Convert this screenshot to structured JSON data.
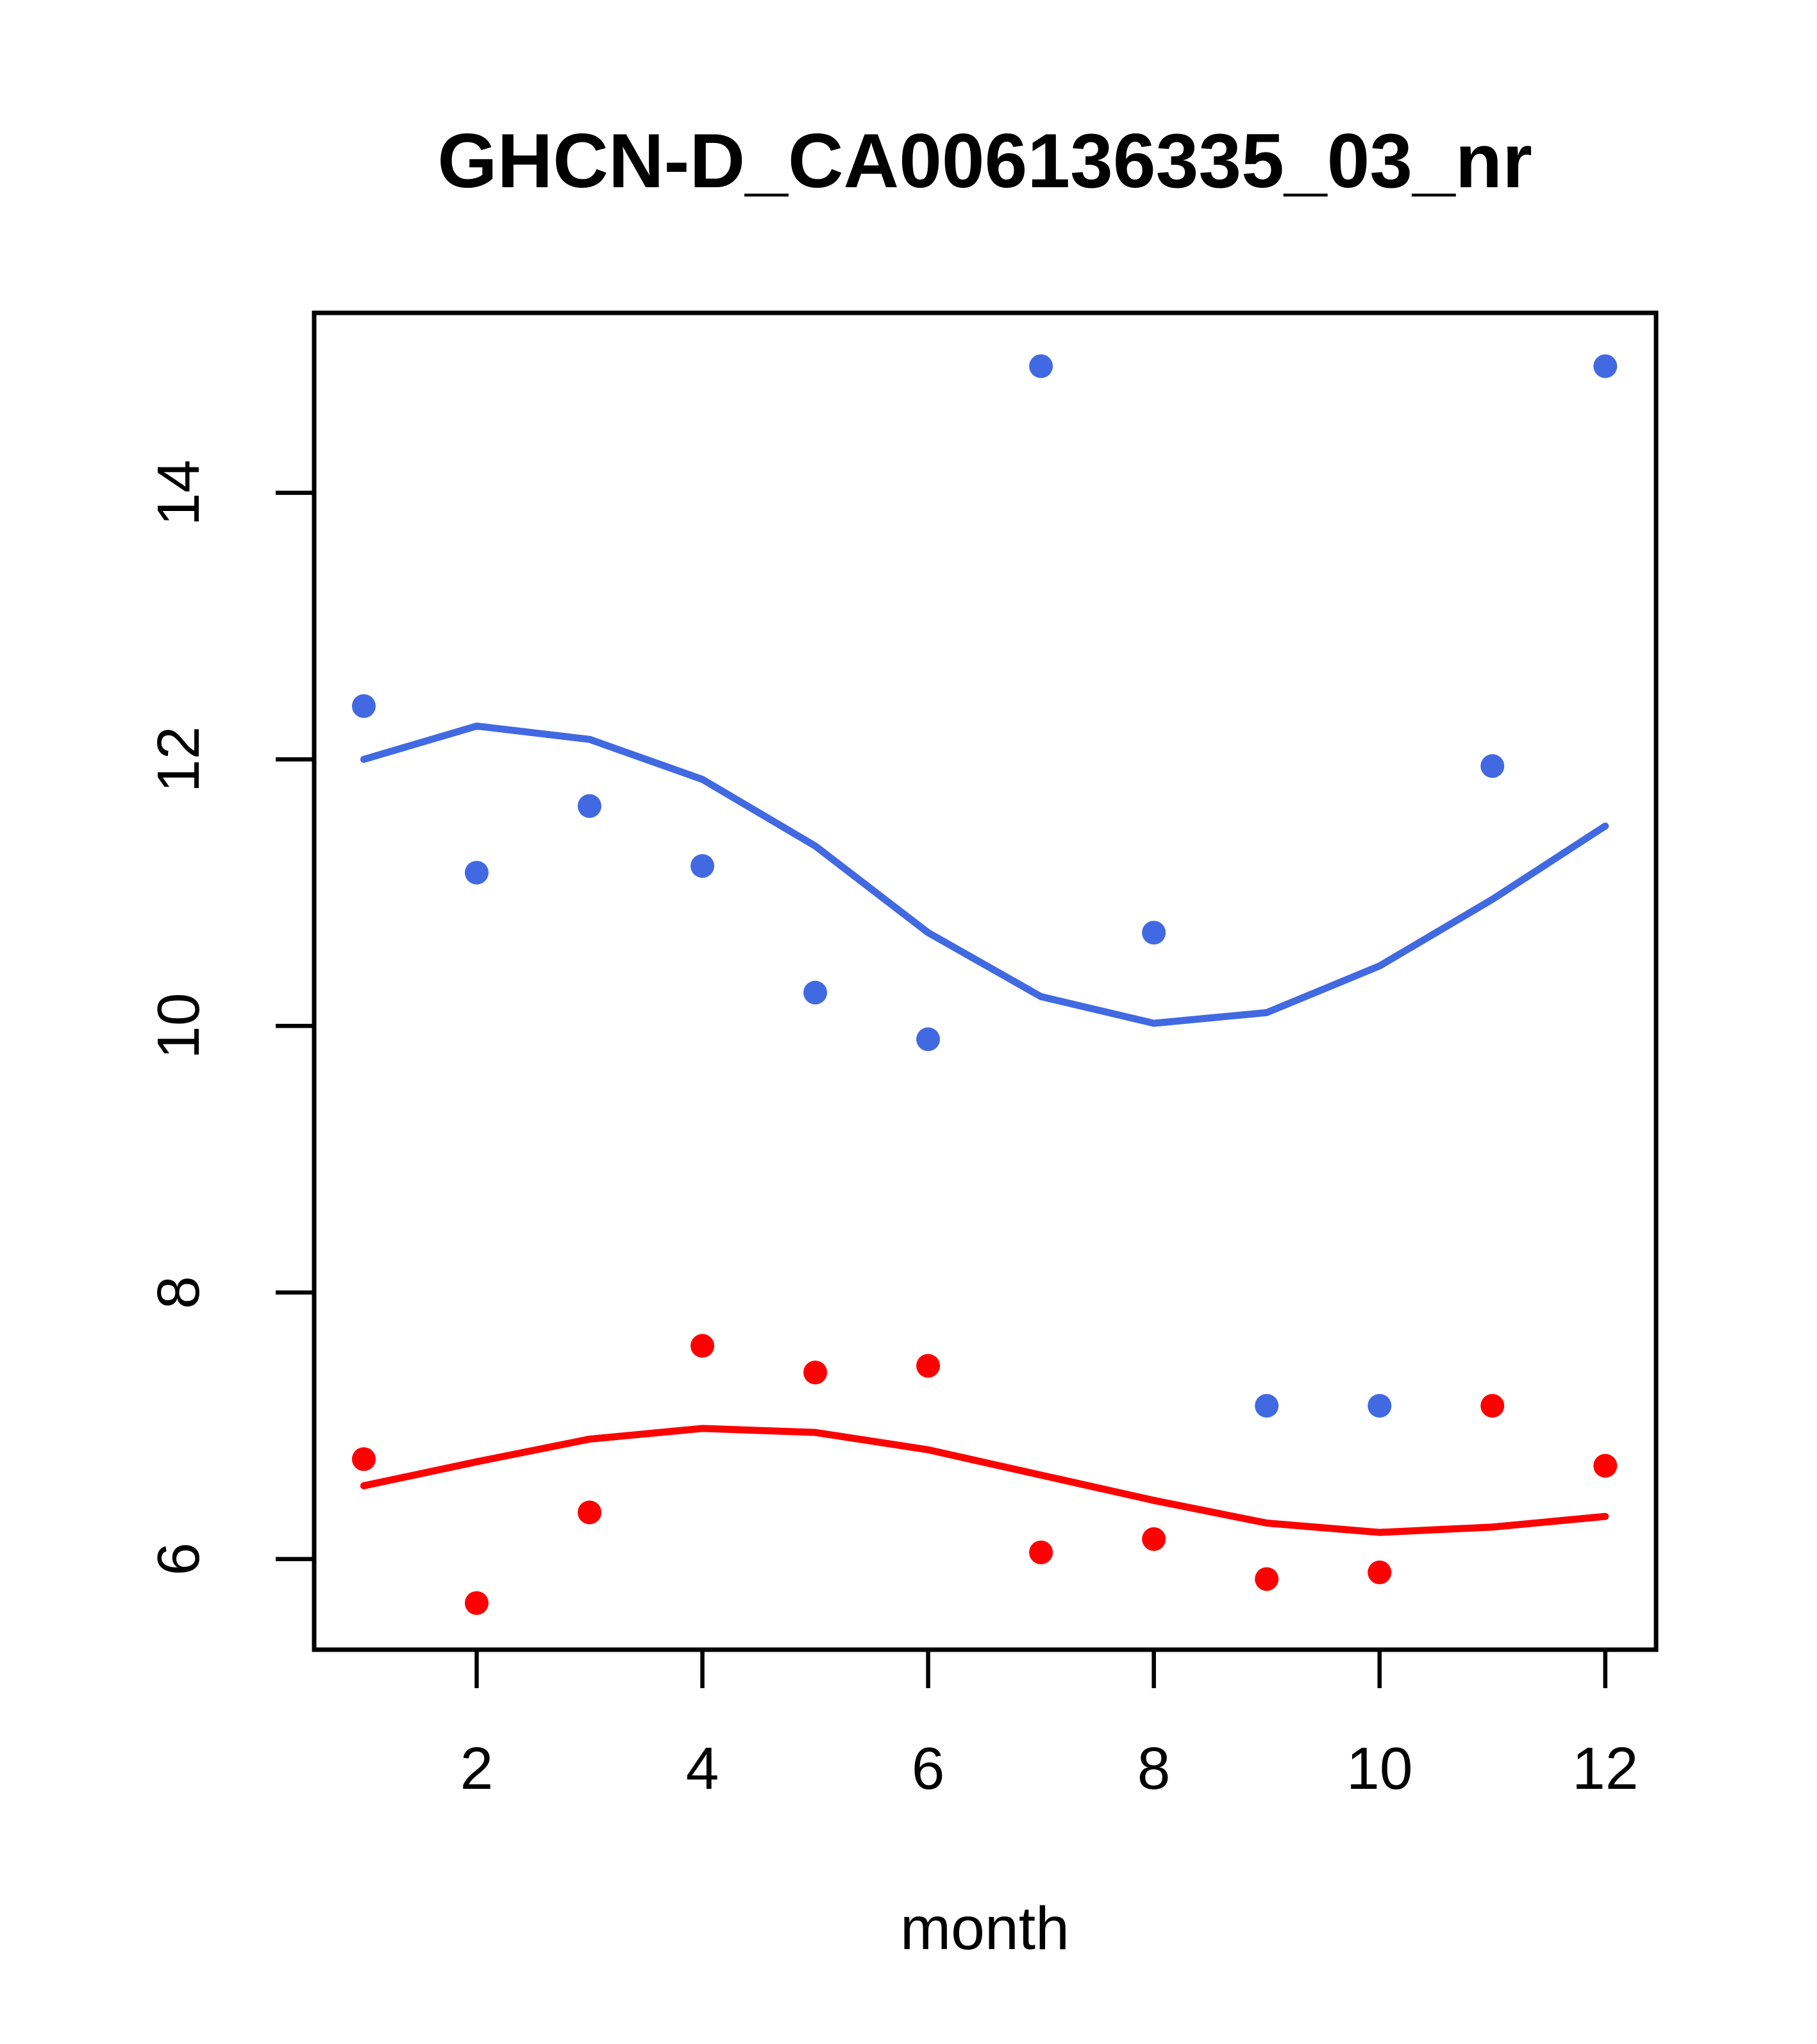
{
  "figure": {
    "background": "#FFFFFF",
    "axis_color": "#000000"
  },
  "chart_data": {
    "type": "scatter",
    "title": "GHCN-D_CA006136335_03_nr",
    "xlabel": "month",
    "ylabel": "",
    "x": [
      1,
      2,
      3,
      4,
      5,
      6,
      7,
      8,
      9,
      10,
      11,
      12
    ],
    "xlim": [
      0.56,
      12.45
    ],
    "ylim": [
      5.32,
      15.35
    ],
    "xticks": [
      2,
      4,
      6,
      8,
      10,
      12
    ],
    "yticks": [
      6,
      8,
      10,
      12,
      14
    ],
    "grid": false,
    "legend_position": "none",
    "series": [
      {
        "name": "blue-observations",
        "type": "points",
        "color": "#4169E1",
        "values": [
          12.4,
          11.15,
          11.65,
          11.2,
          10.25,
          9.9,
          14.95,
          10.7,
          7.15,
          7.15,
          11.95,
          14.95
        ]
      },
      {
        "name": "blue-smooth-line",
        "type": "line",
        "color": "#4169E1",
        "values": [
          12.0,
          12.25,
          12.15,
          11.85,
          11.35,
          10.7,
          10.22,
          10.02,
          10.1,
          10.45,
          10.95,
          11.5
        ]
      },
      {
        "name": "red-observations",
        "type": "points",
        "color": "#FF0000",
        "values": [
          6.75,
          5.67,
          6.35,
          7.6,
          7.4,
          7.45,
          6.05,
          6.15,
          5.85,
          5.9,
          7.15,
          6.7
        ]
      },
      {
        "name": "red-smooth-line",
        "type": "line",
        "color": "#FF0000",
        "values": [
          6.55,
          6.73,
          6.9,
          6.98,
          6.95,
          6.82,
          6.63,
          6.44,
          6.27,
          6.2,
          6.24,
          6.32
        ]
      }
    ]
  }
}
